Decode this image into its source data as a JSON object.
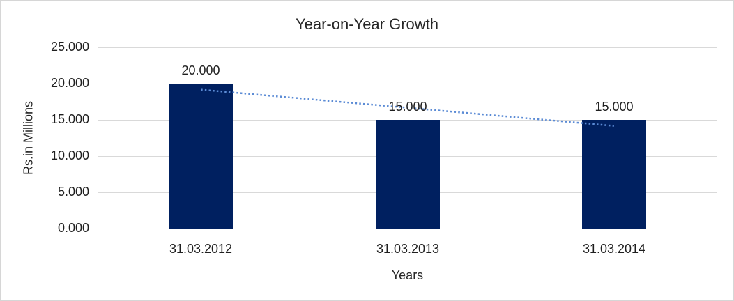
{
  "frame": {
    "background": "#ffffff",
    "border_color": "#d6d6d6"
  },
  "chart_data": {
    "type": "bar",
    "title": "Year-on-Year Growth",
    "xlabel": "Years",
    "ylabel": "Rs.in Millions",
    "categories": [
      "31.03.2012",
      "31.03.2013",
      "31.03.2014"
    ],
    "values": [
      20,
      15,
      15
    ],
    "data_labels": [
      "20.000",
      "15.000",
      "15.000"
    ],
    "y_ticks": {
      "values": [
        0,
        5,
        10,
        15,
        20,
        25
      ],
      "labels": [
        "0.000",
        "5.000",
        "10.000",
        "15.000",
        "20.000",
        "25.000"
      ]
    },
    "ylim": [
      0,
      25
    ],
    "grid": true,
    "legend": false,
    "bar_color": "#002060",
    "text_color": "#262626",
    "gridline_color": "#d9d9d9",
    "axis_line_color": "#c9c9c9",
    "trendline": {
      "type": "linear",
      "style": "dotted",
      "color": "#5B8BD5",
      "start_value": 19.17,
      "end_value": 14.17
    }
  }
}
